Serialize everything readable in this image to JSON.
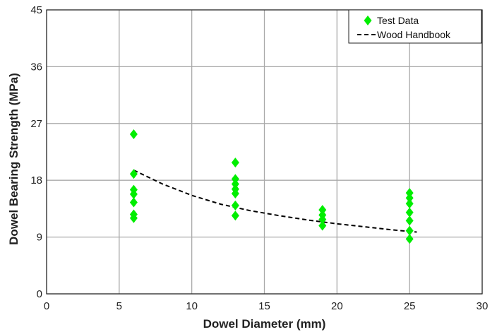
{
  "chart_data": {
    "type": "scatter",
    "title": "",
    "xlabel": "Dowel Diameter (mm)",
    "ylabel": "Dowel Bearing Strength (MPa)",
    "xlim": [
      0,
      30
    ],
    "ylim": [
      0,
      45
    ],
    "xticks": [
      0,
      5,
      10,
      15,
      20,
      25,
      30
    ],
    "yticks": [
      0,
      9,
      18,
      27,
      36,
      45
    ],
    "grid": true,
    "legend_position": "top-right",
    "series": [
      {
        "name": "Test Data",
        "kind": "scatter",
        "marker": "diamond",
        "color": "#00ee00",
        "points": [
          {
            "x": 6,
            "y": 25.3
          },
          {
            "x": 6,
            "y": 19.0
          },
          {
            "x": 6,
            "y": 16.5
          },
          {
            "x": 6,
            "y": 15.8
          },
          {
            "x": 6,
            "y": 14.5
          },
          {
            "x": 6,
            "y": 12.6
          },
          {
            "x": 6,
            "y": 12.0
          },
          {
            "x": 13,
            "y": 20.8
          },
          {
            "x": 13,
            "y": 18.2
          },
          {
            "x": 13,
            "y": 17.4
          },
          {
            "x": 13,
            "y": 16.6
          },
          {
            "x": 13,
            "y": 15.9
          },
          {
            "x": 13,
            "y": 14.0
          },
          {
            "x": 13,
            "y": 12.4
          },
          {
            "x": 19,
            "y": 13.3
          },
          {
            "x": 19,
            "y": 12.5
          },
          {
            "x": 19,
            "y": 11.8
          },
          {
            "x": 19,
            "y": 10.8
          },
          {
            "x": 25,
            "y": 16.0
          },
          {
            "x": 25,
            "y": 15.2
          },
          {
            "x": 25,
            "y": 14.3
          },
          {
            "x": 25,
            "y": 12.9
          },
          {
            "x": 25,
            "y": 11.6
          },
          {
            "x": 25,
            "y": 10.0
          },
          {
            "x": 25,
            "y": 8.7
          }
        ]
      },
      {
        "name": "Wood Handbook",
        "kind": "line",
        "style": "dashed",
        "color": "#000000",
        "points": [
          {
            "x": 6,
            "y": 19.6
          },
          {
            "x": 8,
            "y": 17.4
          },
          {
            "x": 10,
            "y": 15.6
          },
          {
            "x": 12,
            "y": 14.2
          },
          {
            "x": 14,
            "y": 13.2
          },
          {
            "x": 16,
            "y": 12.4
          },
          {
            "x": 18,
            "y": 11.7
          },
          {
            "x": 20,
            "y": 11.1
          },
          {
            "x": 22,
            "y": 10.6
          },
          {
            "x": 24,
            "y": 10.1
          },
          {
            "x": 25.5,
            "y": 9.8
          }
        ]
      }
    ]
  }
}
